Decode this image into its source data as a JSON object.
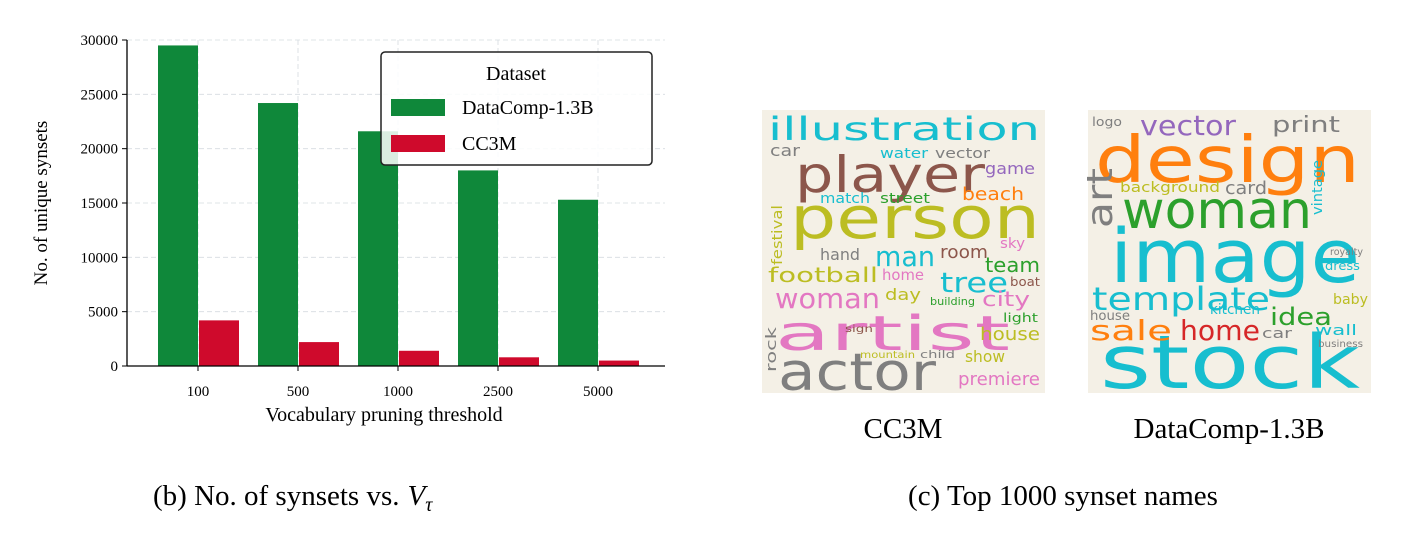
{
  "chart_data": {
    "type": "bar",
    "xlabel": "Vocabulary pruning threshold",
    "ylabel": "No. of unique synsets",
    "categories": [
      "100",
      "500",
      "1000",
      "2500",
      "5000"
    ],
    "series": [
      {
        "name": "DataComp-1.3B",
        "color": "#0f883a",
        "values": [
          29500,
          24200,
          21600,
          18000,
          15300
        ]
      },
      {
        "name": "CC3M",
        "color": "#cf0a2c",
        "values": [
          4200,
          2200,
          1400,
          800,
          500
        ]
      }
    ],
    "ylim": [
      0,
      30000
    ],
    "yticks": [
      0,
      5000,
      10000,
      15000,
      20000,
      25000,
      30000
    ],
    "grid": true,
    "legend": {
      "title": "Dataset",
      "loc": "upper right"
    }
  },
  "captions": [
    {
      "text": "(b) No. of synsets vs.",
      "var": "V",
      "sub": "τ"
    },
    {
      "text": "(c) Top 1000 synset names"
    }
  ],
  "word_clouds": [
    {
      "label": "CC3M",
      "words": [
        "illustration",
        "player",
        "person",
        "actor",
        "artist",
        "woman",
        "man",
        "tree",
        "football",
        "home",
        "hand",
        "room",
        "team",
        "city",
        "house",
        "show",
        "premiere",
        "day",
        "game",
        "beach",
        "water",
        "vector",
        "car",
        "match",
        "street",
        "festival",
        "rock",
        "light",
        "sign",
        "mountain",
        "child",
        "sky",
        "boat",
        "building"
      ]
    },
    {
      "label": "DataComp-1.3B",
      "words": [
        "design",
        "woman",
        "image",
        "stock",
        "template",
        "home",
        "sale",
        "idea",
        "vector",
        "print",
        "art",
        "background",
        "card",
        "logo",
        "kitchen",
        "car",
        "wall",
        "house",
        "baby",
        "dress",
        "vintage",
        "royalty",
        "business"
      ]
    }
  ]
}
